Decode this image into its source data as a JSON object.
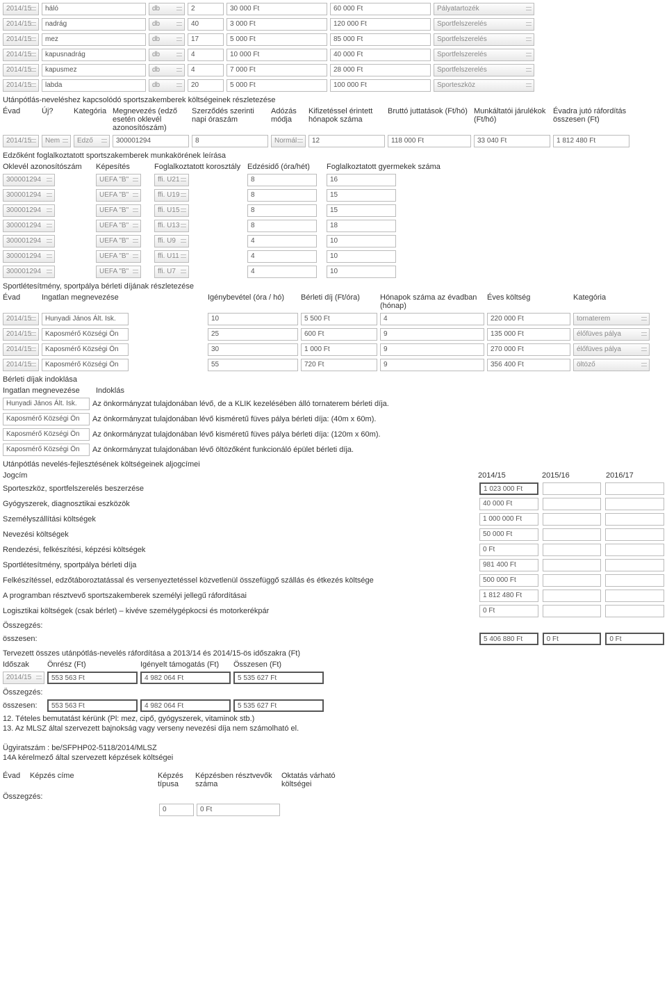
{
  "equip_cols_w": [
    52,
    150,
    52,
    52,
    145,
    145,
    145,
    16
  ],
  "equipment": [
    {
      "evad": "2014/15",
      "meg": "háló",
      "egys": "db",
      "menny": "2",
      "egysar": "30 000 Ft",
      "ossz": "60 000 Ft",
      "kat": "Pályatartozék"
    },
    {
      "evad": "2014/15",
      "meg": "nadrág",
      "egys": "db",
      "menny": "40",
      "egysar": "3 000 Ft",
      "ossz": "120 000 Ft",
      "kat": "Sportfelszerelés"
    },
    {
      "evad": "2014/15",
      "meg": "mez",
      "egys": "db",
      "menny": "17",
      "egysar": "5 000 Ft",
      "ossz": "85 000 Ft",
      "kat": "Sportfelszerelés"
    },
    {
      "evad": "2014/15",
      "meg": "kapusnadrág",
      "egys": "db",
      "menny": "4",
      "egysar": "10 000 Ft",
      "ossz": "40 000 Ft",
      "kat": "Sportfelszerelés"
    },
    {
      "evad": "2014/15",
      "meg": "kapusmez",
      "egys": "db",
      "menny": "4",
      "egysar": "7 000 Ft",
      "ossz": "28 000 Ft",
      "kat": "Sportfelszerelés"
    },
    {
      "evad": "2014/15",
      "meg": "labda",
      "egys": "db",
      "menny": "20",
      "egysar": "5 000 Ft",
      "ossz": "100 000 Ft",
      "kat": "Sporteszköz"
    }
  ],
  "szakember_title": "Utánpótlás-neveléshez kapcsolódó sportszakemberek költségeinek részletezése",
  "szakember_headers": [
    "Évad",
    "Új?",
    "Kategória",
    "Megnevezés (edző esetén oklevél azonosítószám)",
    "Szerződés szerinti napi óraszám",
    "Adózás módja",
    "Kifizetéssel érintett hónapok száma",
    "Bruttó juttatások (Ft/hó)",
    "Munkáltatói járulékok (Ft/hó)",
    "Évadra jutó ráfordítás összesen (Ft)"
  ],
  "szakember_row": {
    "evad": "2014/15",
    "uj": "Nem",
    "kat": "Edző",
    "meg": "300001294",
    "ora": "8",
    "ado": "Normál",
    "hon": "12",
    "brutto": "118 000 Ft",
    "jar": "33 040 Ft",
    "evadra": "1 812 480 Ft"
  },
  "munkakor_title": "Edzőként foglalkoztatott sportszakemberek munkakörének leírása",
  "munkakor_headers": [
    "Oklevél azonosítószám",
    "Képesítés",
    "Foglalkoztatott korosztály",
    "Edzésidő (óra/hét)",
    "Foglalkoztatott gyermekek száma"
  ],
  "munkakor_rows": [
    {
      "id": "300001294",
      "kep": "UEFA \"B\"",
      "kor": "ffi. U21",
      "ora": "8",
      "gy": "16"
    },
    {
      "id": "300001294",
      "kep": "UEFA \"B\"",
      "kor": "ffi. U19",
      "ora": "8",
      "gy": "15"
    },
    {
      "id": "300001294",
      "kep": "UEFA \"B\"",
      "kor": "ffi. U15",
      "ora": "8",
      "gy": "15"
    },
    {
      "id": "300001294",
      "kep": "UEFA \"B\"",
      "kor": "ffi. U13",
      "ora": "8",
      "gy": "18"
    },
    {
      "id": "300001294",
      "kep": "UEFA \"B\"",
      "kor": "ffi. U9",
      "ora": "4",
      "gy": "10"
    },
    {
      "id": "300001294",
      "kep": "UEFA \"B\"",
      "kor": "ffi. U11",
      "ora": "4",
      "gy": "10"
    },
    {
      "id": "300001294",
      "kep": "UEFA \"B\"",
      "kor": "ffi. U7",
      "ora": "4",
      "gy": "10"
    }
  ],
  "berlet_title": "Sportlétesítmény, sportpálya bérleti díjának részletezése",
  "berlet_headers": [
    "Évad",
    "Ingatlan megnevezése",
    "Igénybevétel (óra / hó)",
    "Bérleti díj (Ft/óra)",
    "Hónapok száma az évadban (hónap)",
    "Éves költség",
    "Kategória"
  ],
  "berlet_rows": [
    {
      "evad": "2014/15",
      "ing": "Hunyadi János Ált. Isk.",
      "ora": "10",
      "dij": "5 500 Ft",
      "hon": "4",
      "ev": "220 000 Ft",
      "kat": "tornaterem"
    },
    {
      "evad": "2014/15",
      "ing": "Kaposmérő Községi Ön",
      "ora": "25",
      "dij": "600 Ft",
      "hon": "9",
      "ev": "135 000 Ft",
      "kat": "élőfüves pálya"
    },
    {
      "evad": "2014/15",
      "ing": "Kaposmérő Községi Ön",
      "ora": "30",
      "dij": "1 000 Ft",
      "hon": "9",
      "ev": "270 000 Ft",
      "kat": "élőfüves pálya"
    },
    {
      "evad": "2014/15",
      "ing": "Kaposmérő Községi Ön",
      "ora": "55",
      "dij": "720 Ft",
      "hon": "9",
      "ev": "356 400 Ft",
      "kat": "öltöző"
    }
  ],
  "indok_title": "Bérleti díjak indoklása",
  "indok_headers": [
    "Ingatlan megnevezése",
    "Indoklás"
  ],
  "indok_rows": [
    {
      "ing": "Hunyadi János Ált. Isk.",
      "txt": "Az önkormányzat tulajdonában lévő, de a KLIK kezelésében álló tornaterem bérleti díja."
    },
    {
      "ing": "Kaposmérő Községi Ön",
      "txt": "Az önkormányzat tulajdonában lévő kisméretű füves pálya bérleti díja: (40m x 60m)."
    },
    {
      "ing": "Kaposmérő Községi Ön",
      "txt": "Az önkormányzat tulajdonában lévő kisméretű füves pálya bérleti díja: (120m x 60m)."
    },
    {
      "ing": "Kaposmérő Községi Ön",
      "txt": "Az önkormányzat tulajdonában lévő öltözőként funkcionáló épület bérleti díja."
    }
  ],
  "aljog_title": "Utánpótlás nevelés-fejlesztésének költségeinek aljogcímei",
  "aljog_headers": [
    "Jogcím",
    "2014/15",
    "2015/16",
    "2016/17"
  ],
  "aljog_rows": [
    {
      "j": "Sporteszköz, sportfelszerelés beszerzése",
      "a": "1 023 000 Ft",
      "b": "",
      "c": "",
      "dbl": true
    },
    {
      "j": "Gyógyszerek, diagnosztikai eszközök",
      "a": "40 000 Ft",
      "b": "",
      "c": ""
    },
    {
      "j": "Személyszállítási költségek",
      "a": "1 000 000 Ft",
      "b": "",
      "c": ""
    },
    {
      "j": "Nevezési költségek",
      "a": "50 000 Ft",
      "b": "",
      "c": ""
    },
    {
      "j": "Rendezési, felkészítési, képzési költségek",
      "a": "0 Ft",
      "b": "",
      "c": ""
    },
    {
      "j": "Sportlétesítmény, sportpálya bérleti díja",
      "a": "981 400 Ft",
      "b": "",
      "c": ""
    },
    {
      "j": "Felkészítéssel, edzőtáboroztatással és versenyeztetéssel közvetlenül összefüggő szállás és étkezés költsége",
      "a": "500 000 Ft",
      "b": "",
      "c": ""
    },
    {
      "j": "A programban résztvevő sportszakemberek személyi jellegű ráfordításai",
      "a": "1 812 480 Ft",
      "b": "",
      "c": ""
    },
    {
      "j": "Logisztikai költségek (csak bérlet) – kivéve személygépkocsi és motorkerékpár",
      "a": "0 Ft",
      "b": "",
      "c": ""
    }
  ],
  "aljog_sum_label": "Összegzés:",
  "aljog_sum_row": {
    "j": "összesen:",
    "a": "5 406 880 Ft",
    "b": "0 Ft",
    "c": "0 Ft"
  },
  "terv_title": "Tervezett összes utánpótlás-nevelés ráfordítása a 2013/14 és 2014/15-ös időszakra (Ft)",
  "terv_headers": [
    "Időszak",
    "Önrész (Ft)",
    "Igényelt támogatás (Ft)",
    "Összesen (Ft)"
  ],
  "terv_row": {
    "idoszak": "2014/15",
    "on": "553 563 Ft",
    "tam": "4 982 064 Ft",
    "ossz": "5 535 627 Ft"
  },
  "terv_sum_label": "Összegzés:",
  "terv_sum_row": {
    "idoszak": "összesen:",
    "on": "553 563 Ft",
    "tam": "4 982 064 Ft",
    "ossz": "5 535 627 Ft"
  },
  "notes": [
    "12. Tételes bemutatást kérünk (Pl: mez, cipő, gyógyszerek, vitaminok stb.)",
    "13. Az MLSZ által szervezett bajnokság vagy verseny nevezési díja nem számolható el."
  ],
  "ugyirat": "Ügyiratszám : be/SFPHP02-5118/2014/MLSZ",
  "kep_title": "14A kérelmező által szervezett képzések költségei",
  "kep_headers": [
    "Évad",
    "Képzés címe",
    "Képzés típusa",
    "Képzésben résztvevők száma",
    "Oktatás várható költségei"
  ],
  "kep_sum_label": "Összegzés:",
  "kep_sum_row": {
    "a": "0",
    "b": "0 Ft"
  }
}
